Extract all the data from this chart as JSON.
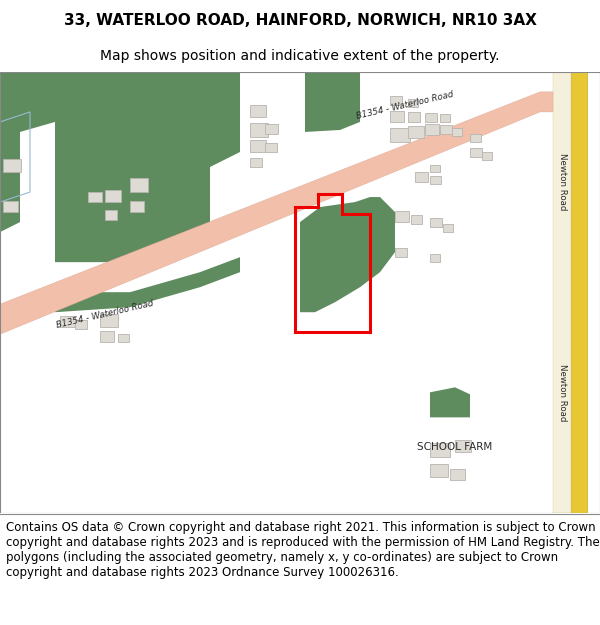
{
  "title": "33, WATERLOO ROAD, HAINFORD, NORWICH, NR10 3AX",
  "subtitle": "Map shows position and indicative extent of the property.",
  "footer": "Contains OS data © Crown copyright and database right 2021. This information is subject to Crown copyright and database rights 2023 and is reproduced with the permission of HM Land Registry. The polygons (including the associated geometry, namely x, y co-ordinates) are subject to Crown copyright and database rights 2023 Ordnance Survey 100026316.",
  "bg_color": "#f0ede6",
  "road_color": "#f2bfaa",
  "road_edge_color": "#dda898",
  "green_color": "#5e8c5e",
  "building_fill": "#dedbd4",
  "building_edge": "#b8b5af",
  "red_plot_color": "#ee0000",
  "yellow_road_color": "#e8c832",
  "yellow_road_inner": "#f5f0dc",
  "blue_line_color": "#9ab8d0",
  "road_label": "B1354 - Waterloo Road",
  "newton_label": "Newton Road",
  "school_label": "SCHOOL FARM",
  "title_fontsize": 11,
  "subtitle_fontsize": 10,
  "footer_fontsize": 8.5
}
